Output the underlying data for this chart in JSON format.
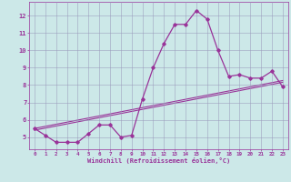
{
  "x": [
    0,
    1,
    2,
    3,
    4,
    5,
    6,
    7,
    8,
    9,
    10,
    11,
    12,
    13,
    14,
    15,
    16,
    17,
    18,
    19,
    20,
    21,
    22,
    23
  ],
  "y_main": [
    5.5,
    5.1,
    4.7,
    4.7,
    4.7,
    5.2,
    5.7,
    5.7,
    5.0,
    5.1,
    7.2,
    9.0,
    10.4,
    11.5,
    11.5,
    12.3,
    11.8,
    10.0,
    8.5,
    8.6,
    8.4,
    8.4,
    8.8,
    7.9
  ],
  "y_trend1": [
    5.4,
    5.52,
    5.64,
    5.76,
    5.88,
    6.0,
    6.12,
    6.24,
    6.36,
    6.48,
    6.6,
    6.72,
    6.84,
    6.96,
    7.08,
    7.2,
    7.32,
    7.44,
    7.56,
    7.68,
    7.8,
    7.92,
    8.04,
    8.16
  ],
  "y_trend2": [
    5.5,
    5.62,
    5.74,
    5.86,
    5.98,
    6.1,
    6.22,
    6.34,
    6.46,
    6.58,
    6.7,
    6.82,
    6.94,
    7.06,
    7.18,
    7.3,
    7.42,
    7.54,
    7.66,
    7.78,
    7.9,
    8.02,
    8.14,
    8.26
  ],
  "color": "#993399",
  "bg_color": "#cce8e8",
  "grid_color": "#9999bb",
  "xlabel": "Windchill (Refroidissement éolien,°C)",
  "ylim": [
    4.3,
    12.8
  ],
  "xlim": [
    -0.5,
    23.5
  ],
  "yticks": [
    5,
    6,
    7,
    8,
    9,
    10,
    11,
    12
  ],
  "xticks": [
    0,
    1,
    2,
    3,
    4,
    5,
    6,
    7,
    8,
    9,
    10,
    11,
    12,
    13,
    14,
    15,
    16,
    17,
    18,
    19,
    20,
    21,
    22,
    23
  ]
}
